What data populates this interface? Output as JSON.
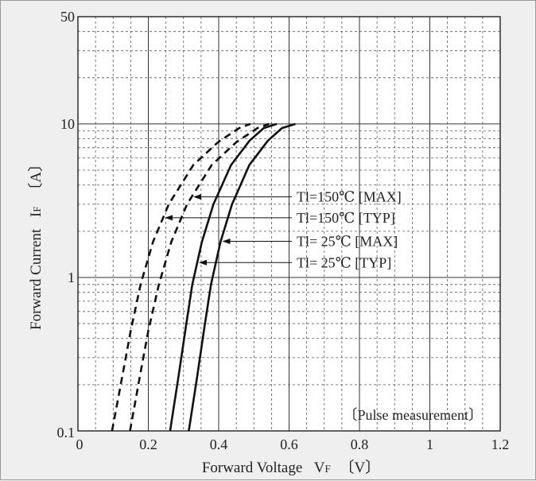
{
  "chart_data": {
    "type": "line",
    "xlabel": "Forward Voltage",
    "xlabel_symbol": "V",
    "xlabel_sub": "F",
    "xlabel_unit": "〔V〕",
    "ylabel": "Forward Current",
    "ylabel_symbol": "I",
    "ylabel_sub": "F",
    "ylabel_unit": "〔A〕",
    "xlim": [
      0,
      1.2
    ],
    "ylim": [
      0.1,
      50
    ],
    "yscale": "log",
    "grid": true,
    "x_ticks": [
      0,
      0.2,
      0.4,
      0.6,
      0.8,
      1,
      1.2
    ],
    "x_tick_labels": [
      "0",
      "0.2",
      "0.4",
      "0.6",
      "0.8",
      "1",
      "1.2"
    ],
    "y_ticks": [
      0.1,
      1,
      10,
      50
    ],
    "y_tick_labels": [
      "0.1",
      "1",
      "10",
      "50"
    ],
    "note": "〔Pulse measurement〕",
    "series": [
      {
        "name": "Tl=150℃ [MAX]",
        "style": "dashed",
        "points": [
          [
            0.148,
            0.1
          ],
          [
            0.175,
            0.22
          ],
          [
            0.2,
            0.45
          ],
          [
            0.23,
            0.9
          ],
          [
            0.265,
            1.7
          ],
          [
            0.31,
            3.0
          ],
          [
            0.38,
            5.4
          ],
          [
            0.45,
            7.6
          ],
          [
            0.51,
            9.4
          ],
          [
            0.543,
            10
          ]
        ]
      },
      {
        "name": "Tl=150℃ [TYP]",
        "style": "dashed",
        "points": [
          [
            0.097,
            0.1
          ],
          [
            0.125,
            0.22
          ],
          [
            0.15,
            0.45
          ],
          [
            0.178,
            0.9
          ],
          [
            0.213,
            1.7
          ],
          [
            0.258,
            3.0
          ],
          [
            0.328,
            5.4
          ],
          [
            0.398,
            7.6
          ],
          [
            0.458,
            9.4
          ],
          [
            0.49,
            10
          ]
        ]
      },
      {
        "name": "Tl= 25℃ [MAX]",
        "style": "solid",
        "points": [
          [
            0.315,
            0.1
          ],
          [
            0.338,
            0.22
          ],
          [
            0.358,
            0.45
          ],
          [
            0.378,
            0.9
          ],
          [
            0.405,
            1.7
          ],
          [
            0.438,
            3.0
          ],
          [
            0.487,
            5.4
          ],
          [
            0.54,
            7.8
          ],
          [
            0.58,
            9.4
          ],
          [
            0.618,
            10
          ]
        ]
      },
      {
        "name": "Tl= 25℃ [TYP]",
        "style": "solid",
        "points": [
          [
            0.262,
            0.1
          ],
          [
            0.285,
            0.22
          ],
          [
            0.305,
            0.45
          ],
          [
            0.325,
            0.9
          ],
          [
            0.352,
            1.7
          ],
          [
            0.385,
            3.0
          ],
          [
            0.435,
            5.4
          ],
          [
            0.488,
            7.8
          ],
          [
            0.528,
            9.4
          ],
          [
            0.565,
            10
          ]
        ]
      }
    ],
    "annotations": [
      {
        "text": "Tl=150℃ [MAX]",
        "series": 0,
        "y": 3.35
      },
      {
        "text": "Tl=150℃ [TYP]",
        "series": 1,
        "y": 2.45
      },
      {
        "text": "Tl= 25℃ [MAX]",
        "series": 2,
        "y": 1.72
      },
      {
        "text": "Tl= 25℃ [TYP]",
        "series": 3,
        "y": 1.25
      }
    ]
  }
}
